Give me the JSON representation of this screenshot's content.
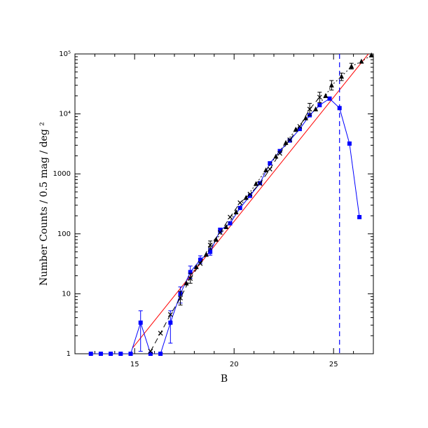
{
  "chart_data": {
    "type": "scatter",
    "xlabel": "B",
    "ylabel": "Number Counts / 0.5 mag / deg ²",
    "xlim": [
      12.0,
      27.0
    ],
    "ylim": [
      1,
      100000
    ],
    "x_scale": "linear",
    "y_scale": "log",
    "x_ticks": [
      15,
      20,
      25
    ],
    "x_tick_labels": [
      "15",
      "20",
      "25"
    ],
    "y_ticks": [
      1,
      10,
      100,
      1000,
      10000,
      100000
    ],
    "y_tick_labels": [
      "1",
      "10",
      "100",
      "1000",
      "10⁴",
      "10⁵"
    ],
    "grid": false,
    "legend": "none",
    "colors": {
      "blue": "#0000ff",
      "red": "#ff0000",
      "black": "#000000"
    },
    "series": [
      {
        "marker": "square",
        "style": "solid",
        "color": "#0000ff",
        "points": [
          {
            "x": 12.8,
            "y": 1
          },
          {
            "x": 13.3,
            "y": 1
          },
          {
            "x": 13.8,
            "y": 1
          },
          {
            "x": 14.3,
            "y": 1
          },
          {
            "x": 14.8,
            "y": 1
          },
          {
            "x": 15.3,
            "y": 3.3,
            "err": [
              1.1,
              5.2
            ]
          },
          {
            "x": 15.8,
            "y": 1
          },
          {
            "x": 16.3,
            "y": 1
          },
          {
            "x": 16.8,
            "y": 3.3,
            "err": [
              1.5,
              5.2
            ]
          },
          {
            "x": 17.3,
            "y": 10,
            "err": [
              7,
              13
            ]
          },
          {
            "x": 17.8,
            "y": 23,
            "err": [
              18,
              29
            ]
          },
          {
            "x": 18.3,
            "y": 37,
            "err": [
              32,
              43
            ]
          },
          {
            "x": 18.8,
            "y": 50,
            "err": [
              44,
              57
            ]
          },
          {
            "x": 19.3,
            "y": 115,
            "err": [
              105,
              125
            ]
          },
          {
            "x": 19.8,
            "y": 150
          },
          {
            "x": 20.3,
            "y": 270
          },
          {
            "x": 20.8,
            "y": 430
          },
          {
            "x": 21.3,
            "y": 700
          },
          {
            "x": 21.8,
            "y": 1500
          },
          {
            "x": 22.3,
            "y": 2400
          },
          {
            "x": 22.8,
            "y": 3600
          },
          {
            "x": 23.3,
            "y": 5600
          },
          {
            "x": 23.8,
            "y": 9500
          },
          {
            "x": 24.3,
            "y": 14000
          },
          {
            "x": 24.8,
            "y": 18000
          },
          {
            "x": 25.3,
            "y": 12500
          },
          {
            "x": 25.8,
            "y": 3200
          },
          {
            "x": 26.3,
            "y": 190
          }
        ]
      },
      {
        "marker": "cross",
        "style": "dashed",
        "color": "#000000",
        "points": [
          {
            "x": 15.8,
            "y": 1.1
          },
          {
            "x": 16.3,
            "y": 2.2
          },
          {
            "x": 16.8,
            "y": 4.5
          },
          {
            "x": 17.3,
            "y": 8.5,
            "err": [
              6.5,
              11
            ]
          },
          {
            "x": 17.8,
            "y": 18,
            "err": [
              15,
              22
            ]
          },
          {
            "x": 18.3,
            "y": 32
          },
          {
            "x": 18.8,
            "y": 65,
            "err": [
              55,
              76
            ]
          },
          {
            "x": 19.3,
            "y": 105
          },
          {
            "x": 19.8,
            "y": 190
          },
          {
            "x": 20.3,
            "y": 330
          },
          {
            "x": 20.8,
            "y": 460
          },
          {
            "x": 21.3,
            "y": 690
          },
          {
            "x": 21.8,
            "y": 1200
          },
          {
            "x": 22.3,
            "y": 2200
          },
          {
            "x": 22.8,
            "y": 3700
          },
          {
            "x": 23.3,
            "y": 6200
          },
          {
            "x": 23.8,
            "y": 12000,
            "err": [
              9500,
              15000
            ]
          },
          {
            "x": 24.3,
            "y": 19000,
            "err": [
              15500,
              23000
            ]
          }
        ]
      },
      {
        "marker": "triangle",
        "style": "dotted",
        "color": "#000000",
        "points": [
          {
            "x": 17.6,
            "y": 15
          },
          {
            "x": 18.1,
            "y": 28
          },
          {
            "x": 18.6,
            "y": 45
          },
          {
            "x": 19.1,
            "y": 80
          },
          {
            "x": 19.6,
            "y": 130
          },
          {
            "x": 20.1,
            "y": 230
          },
          {
            "x": 20.6,
            "y": 400
          },
          {
            "x": 21.1,
            "y": 680
          },
          {
            "x": 21.6,
            "y": 1150
          },
          {
            "x": 22.1,
            "y": 1950
          },
          {
            "x": 22.6,
            "y": 3300
          },
          {
            "x": 23.1,
            "y": 5500
          },
          {
            "x": 23.6,
            "y": 8500
          },
          {
            "x": 24.1,
            "y": 12000
          },
          {
            "x": 24.6,
            "y": 20000
          },
          {
            "x": 24.9,
            "y": 30000,
            "err": [
              25000,
              36000
            ]
          },
          {
            "x": 25.4,
            "y": 42000,
            "err": [
              36000,
              48000
            ]
          },
          {
            "x": 25.9,
            "y": 62000,
            "err": [
              56000,
              70000
            ]
          },
          {
            "x": 26.4,
            "y": 75000
          },
          {
            "x": 26.9,
            "y": 95000
          }
        ]
      }
    ],
    "reference_lines": [
      {
        "kind": "line",
        "color": "#ff0000",
        "style": "solid",
        "from": {
          "x": 14.9,
          "y": 1.25
        },
        "to": {
          "x": 26.8,
          "y": 105000
        }
      },
      {
        "kind": "vertical",
        "color": "#0000ff",
        "style": "dashed",
        "x": 25.3
      }
    ]
  }
}
